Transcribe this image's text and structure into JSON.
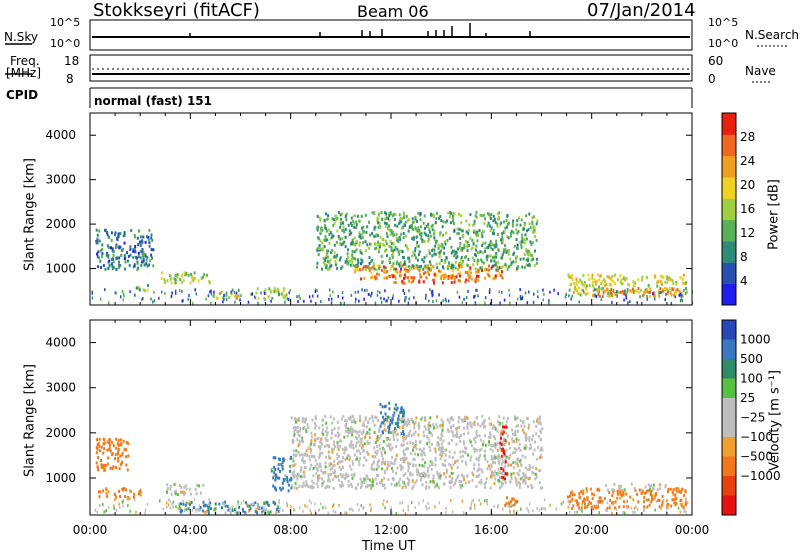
{
  "header": {
    "station": "Stokkseyri (fitACF)",
    "beam": "Beam 06",
    "date": "07/Jan/2014"
  },
  "strip": {
    "nsky_label": "N.Sky",
    "nsearch_label": "N.Search",
    "n_top_left": "10^5",
    "n_bot_left": "10^0",
    "n_top_right": "10^5",
    "n_bot_right": "10^0",
    "freq_label": "Freq.",
    "freq_unit": "[MHz]",
    "freq_top": "18",
    "freq_bot": "8",
    "nave_label": "Nave",
    "nave_top": "60",
    "nave_bot": "0",
    "cpid_label": "CPID",
    "cpid_value": "normal (fast) 151"
  },
  "axes": {
    "ylabel": "Slant Range [km]",
    "xlabel": "Time UT",
    "power_label": "Power [dB]",
    "velocity_label": "Velocity [m s⁻¹]"
  },
  "colors": {
    "power": [
      "#1e1ef0",
      "#2850b0",
      "#2f8a78",
      "#58b058",
      "#a0d040",
      "#f0d020",
      "#f0a020",
      "#f06820",
      "#e82010"
    ],
    "velocity": [
      "#2848b8",
      "#3878c0",
      "#2f8a68",
      "#58c040",
      "#bebebe",
      "#bebebe",
      "#f0a030",
      "#f07818",
      "#e84010",
      "#e81010"
    ]
  },
  "chart_data": [
    {
      "type": "heatmap",
      "title": "Power",
      "ylabel": "Slant Range [km]",
      "xlabel": "Time UT",
      "xlim": [
        0,
        24
      ],
      "ylim": [
        180,
        4500
      ],
      "x_ticks": [
        "00:00",
        "04:00",
        "08:00",
        "12:00",
        "16:00",
        "20:00",
        "00:00"
      ],
      "y_ticks": [
        "1000",
        "2000",
        "3000",
        "4000"
      ],
      "colorbar_label": "Power [dB]",
      "colorbar_ticks": [
        "4",
        "8",
        "12",
        "16",
        "20",
        "24",
        "28"
      ],
      "colorbar_range": [
        0,
        32
      ],
      "regions": [
        {
          "t0": 0.2,
          "t1": 2.5,
          "r0": 1000,
          "r1": 1900,
          "level": 8
        },
        {
          "t0": 1.8,
          "t1": 2.5,
          "r0": 500,
          "r1": 700,
          "level": 14
        },
        {
          "t0": 2.8,
          "t1": 4.8,
          "r0": 700,
          "r1": 950,
          "level": 16
        },
        {
          "t0": 4.8,
          "t1": 6.0,
          "r0": 350,
          "r1": 500,
          "level": 20
        },
        {
          "t0": 6.3,
          "t1": 7.8,
          "r0": 350,
          "r1": 600,
          "level": 16
        },
        {
          "t0": 9.0,
          "t1": 17.8,
          "r0": 1000,
          "r1": 2300,
          "level": 12
        },
        {
          "t0": 10.5,
          "t1": 16.5,
          "r0": 800,
          "r1": 1100,
          "level": 24
        },
        {
          "t0": 12.0,
          "t1": 15.5,
          "r0": 700,
          "r1": 900,
          "level": 28
        },
        {
          "t0": 19.0,
          "t1": 23.8,
          "r0": 400,
          "r1": 900,
          "level": 18
        },
        {
          "t0": 20.0,
          "t1": 23.5,
          "r0": 400,
          "r1": 600,
          "level": 24
        }
      ]
    },
    {
      "type": "heatmap",
      "title": "Velocity",
      "ylabel": "Slant Range [km]",
      "xlabel": "Time UT",
      "xlim": [
        0,
        24
      ],
      "ylim": [
        180,
        4500
      ],
      "x_ticks": [
        "00:00",
        "04:00",
        "08:00",
        "12:00",
        "16:00",
        "20:00",
        "00:00"
      ],
      "y_ticks": [
        "1000",
        "2000",
        "3000",
        "4000"
      ],
      "colorbar_label": "Velocity [m s⁻¹]",
      "colorbar_ticks": [
        "1000",
        "500",
        "100",
        "25",
        "−25",
        "−100",
        "−500",
        "−1000"
      ],
      "regions": [
        {
          "t0": 0.2,
          "t1": 1.5,
          "r0": 1200,
          "r1": 1900,
          "v": -300
        },
        {
          "t0": 0.3,
          "t1": 2.0,
          "r0": 550,
          "r1": 800,
          "v": -200
        },
        {
          "t0": 3.0,
          "t1": 4.5,
          "r0": 650,
          "r1": 900,
          "v": 0
        },
        {
          "t0": 3.5,
          "t1": 7.5,
          "r0": 250,
          "r1": 500,
          "v": 150
        },
        {
          "t0": 7.2,
          "t1": 8.0,
          "r0": 700,
          "r1": 1500,
          "v": 150
        },
        {
          "t0": 8.0,
          "t1": 18.0,
          "r0": 800,
          "r1": 2400,
          "v": 0
        },
        {
          "t0": 11.5,
          "t1": 12.5,
          "r0": 2000,
          "r1": 2700,
          "v": 200
        },
        {
          "t0": 16.3,
          "t1": 16.6,
          "r0": 1000,
          "r1": 2200,
          "v": -900
        },
        {
          "t0": 19.0,
          "t1": 23.8,
          "r0": 350,
          "r1": 800,
          "v": -200
        },
        {
          "t0": 20.5,
          "t1": 23.0,
          "r0": 750,
          "r1": 900,
          "v": 0
        },
        {
          "t0": 16.5,
          "t1": 17.0,
          "r0": 400,
          "r1": 700,
          "v": -300
        }
      ]
    }
  ]
}
